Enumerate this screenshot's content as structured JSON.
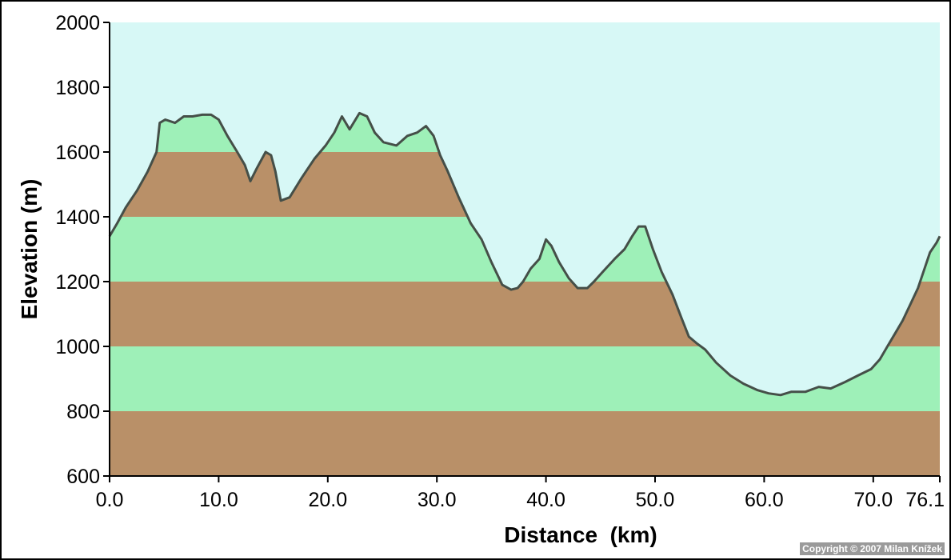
{
  "chart_data": {
    "type": "area",
    "xlabel": "Distance  (km)",
    "ylabel": "Elevation (m)",
    "xlim": [
      0,
      76.1
    ],
    "ylim": [
      600,
      2000
    ],
    "x_ticks": [
      "0.0",
      "10.0",
      "20.0",
      "30.0",
      "40.0",
      "50.0",
      "60.0",
      "70.0",
      "76.1"
    ],
    "y_ticks": [
      "600",
      "800",
      "1000",
      "1200",
      "1400",
      "1600",
      "1800",
      "2000"
    ],
    "grid": false,
    "band_step": 200,
    "colors": {
      "sky": "#d7f8f6",
      "band_green": "#9ef0b8",
      "band_brown": "#b99068",
      "profile_line": "#454f48"
    },
    "series": [
      {
        "x": [
          0,
          0.7,
          1.5,
          2.5,
          3.5,
          4.3,
          4.6,
          5.1,
          6.0,
          6.8,
          7.6,
          8.5,
          9.3,
          10.0,
          10.8,
          11.7,
          12.4,
          12.9,
          13.5,
          14.3,
          14.8,
          15.2,
          15.7,
          16.5,
          17.6,
          18.8,
          19.8,
          20.6,
          21.3,
          22.0,
          22.9,
          23.6,
          24.3,
          25.1,
          26.3,
          27.3,
          28.2,
          29.0,
          29.7,
          30.3,
          31.0,
          32.0,
          33.1,
          34.1,
          35.0,
          36.0,
          36.8,
          37.4,
          37.9,
          38.6,
          39.4,
          40.0,
          40.5,
          41.2,
          42.1,
          42.9,
          43.8,
          44.4,
          45.2,
          46.3,
          47.2,
          47.9,
          48.5,
          49.1,
          49.8,
          50.6,
          51.6,
          52.4,
          53.1,
          53.8,
          54.6,
          55.6,
          56.9,
          58.1,
          59.4,
          60.4,
          61.5,
          62.5,
          63.8,
          65.0,
          66.1,
          67.4,
          68.6,
          69.8,
          70.6,
          71.3,
          72.0,
          72.7,
          73.4,
          74.1,
          74.7,
          75.2,
          75.8,
          76.1
        ],
        "y": [
          1340,
          1380,
          1430,
          1480,
          1540,
          1600,
          1690,
          1700,
          1690,
          1710,
          1710,
          1715,
          1715,
          1700,
          1650,
          1600,
          1560,
          1510,
          1550,
          1600,
          1590,
          1540,
          1450,
          1460,
          1520,
          1580,
          1620,
          1660,
          1710,
          1670,
          1720,
          1710,
          1660,
          1630,
          1620,
          1650,
          1660,
          1680,
          1650,
          1590,
          1540,
          1460,
          1380,
          1330,
          1260,
          1190,
          1175,
          1180,
          1200,
          1240,
          1270,
          1330,
          1310,
          1260,
          1210,
          1180,
          1180,
          1200,
          1230,
          1270,
          1300,
          1340,
          1370,
          1370,
          1300,
          1230,
          1160,
          1090,
          1030,
          1010,
          990,
          950,
          910,
          885,
          865,
          855,
          850,
          860,
          860,
          875,
          870,
          890,
          910,
          930,
          960,
          1000,
          1040,
          1080,
          1130,
          1180,
          1240,
          1290,
          1320,
          1340
        ]
      }
    ]
  },
  "copyright": "Copyright © 2007 Milan Knížek"
}
